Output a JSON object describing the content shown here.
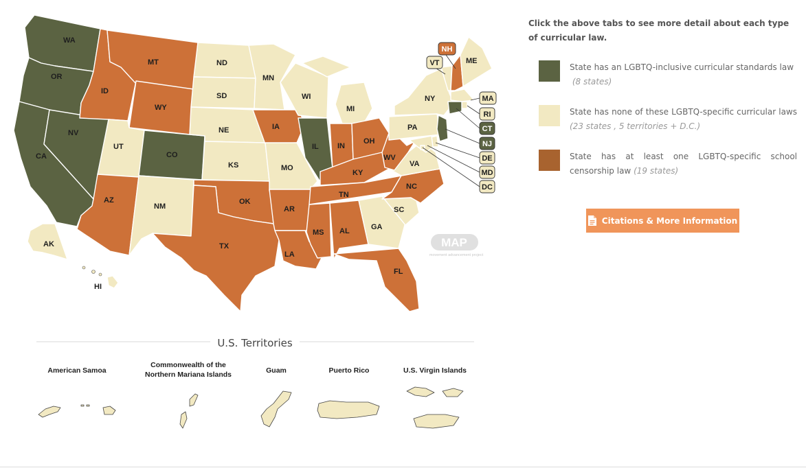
{
  "colors": {
    "inclusive": "#5b6342",
    "none": "#f2e9c2",
    "censorship": "#cd7138",
    "outline": "#ffffff",
    "button": "#f0955a",
    "legend_censorship_swatch": "#a8632f"
  },
  "map": {
    "states": [
      {
        "abbr": "WA",
        "status": "inclusive"
      },
      {
        "abbr": "OR",
        "status": "inclusive"
      },
      {
        "abbr": "CA",
        "status": "inclusive"
      },
      {
        "abbr": "NV",
        "status": "inclusive"
      },
      {
        "abbr": "ID",
        "status": "censorship"
      },
      {
        "abbr": "MT",
        "status": "censorship"
      },
      {
        "abbr": "WY",
        "status": "censorship"
      },
      {
        "abbr": "UT",
        "status": "none"
      },
      {
        "abbr": "CO",
        "status": "inclusive"
      },
      {
        "abbr": "AZ",
        "status": "censorship"
      },
      {
        "abbr": "NM",
        "status": "none"
      },
      {
        "abbr": "ND",
        "status": "none"
      },
      {
        "abbr": "SD",
        "status": "none"
      },
      {
        "abbr": "NE",
        "status": "none"
      },
      {
        "abbr": "KS",
        "status": "none"
      },
      {
        "abbr": "OK",
        "status": "censorship"
      },
      {
        "abbr": "TX",
        "status": "censorship"
      },
      {
        "abbr": "MN",
        "status": "none"
      },
      {
        "abbr": "IA",
        "status": "censorship"
      },
      {
        "abbr": "MO",
        "status": "none"
      },
      {
        "abbr": "AR",
        "status": "censorship"
      },
      {
        "abbr": "LA",
        "status": "censorship"
      },
      {
        "abbr": "WI",
        "status": "none"
      },
      {
        "abbr": "IL",
        "status": "inclusive"
      },
      {
        "abbr": "MI",
        "status": "none"
      },
      {
        "abbr": "IN",
        "status": "censorship"
      },
      {
        "abbr": "OH",
        "status": "censorship"
      },
      {
        "abbr": "KY",
        "status": "censorship"
      },
      {
        "abbr": "TN",
        "status": "censorship"
      },
      {
        "abbr": "MS",
        "status": "censorship"
      },
      {
        "abbr": "AL",
        "status": "censorship"
      },
      {
        "abbr": "GA",
        "status": "none"
      },
      {
        "abbr": "FL",
        "status": "censorship"
      },
      {
        "abbr": "SC",
        "status": "none"
      },
      {
        "abbr": "NC",
        "status": "censorship"
      },
      {
        "abbr": "VA",
        "status": "none"
      },
      {
        "abbr": "WV",
        "status": "censorship"
      },
      {
        "abbr": "PA",
        "status": "none"
      },
      {
        "abbr": "NY",
        "status": "none"
      },
      {
        "abbr": "VT",
        "status": "none"
      },
      {
        "abbr": "NH",
        "status": "censorship"
      },
      {
        "abbr": "ME",
        "status": "none"
      },
      {
        "abbr": "MA",
        "status": "none"
      },
      {
        "abbr": "RI",
        "status": "none"
      },
      {
        "abbr": "CT",
        "status": "inclusive"
      },
      {
        "abbr": "NJ",
        "status": "inclusive"
      },
      {
        "abbr": "DE",
        "status": "none"
      },
      {
        "abbr": "MD",
        "status": "none"
      },
      {
        "abbr": "DC",
        "status": "none"
      },
      {
        "abbr": "AK",
        "status": "none"
      },
      {
        "abbr": "HI",
        "status": "none"
      }
    ],
    "watermark": {
      "logo_text": "MAP",
      "subtext": "movement advancement project"
    }
  },
  "territories": {
    "title": "U.S. Territories",
    "items": [
      {
        "name": "American Samoa",
        "status": "none"
      },
      {
        "name_line1": "Commonwealth of the",
        "name_line2": "Northern Mariana Islands",
        "status": "none"
      },
      {
        "name": "Guam",
        "status": "none"
      },
      {
        "name": "Puerto Rico",
        "status": "none"
      },
      {
        "name": "U.S. Virgin Islands",
        "status": "none"
      }
    ]
  },
  "sidebar": {
    "intro": "Click the above tabs to see more detail about each type of curricular law.",
    "legend": [
      {
        "status": "inclusive",
        "label": "State has an LGBTQ-inclusive curricular standards law",
        "count": "(8 states)"
      },
      {
        "status": "none",
        "label": "State has none of these LGBTQ-specific curricular laws",
        "count": "(23 states , 5 territories + D.C.)"
      },
      {
        "status": "censorship",
        "label": "State has at least one LGBTQ-specific school censorship law",
        "count": "(19 states)"
      }
    ],
    "citations_button": "Citations & More Information"
  }
}
